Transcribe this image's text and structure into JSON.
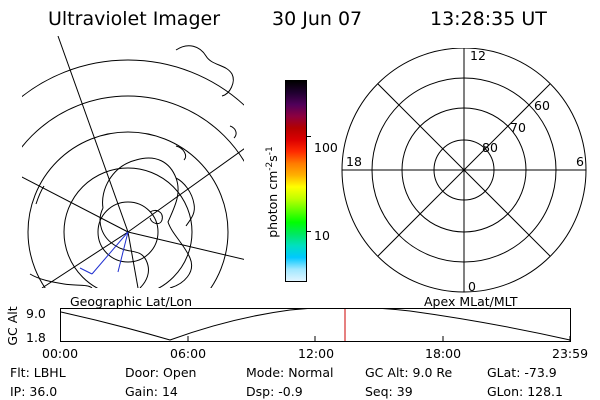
{
  "header": {
    "instrument": "Ultraviolet Imager",
    "date": "30 Jun 07",
    "time": "13:28:35 UT"
  },
  "geo_map": {
    "label": "Geographic Lat/Lon"
  },
  "colorbar": {
    "unit_main": "photon cm",
    "unit_exp1": "-2",
    "unit_s": "s",
    "unit_exp2": "-1",
    "ticks": [
      "100",
      "10"
    ],
    "colors": [
      "#000000",
      "#200030",
      "#50005a",
      "#8c0040",
      "#b40000",
      "#dc0000",
      "#ff2a00",
      "#ff7a00",
      "#ffb000",
      "#ffff00",
      "#c0ff00",
      "#60ff00",
      "#00ff00",
      "#00e860",
      "#00e0c0",
      "#00c8ff",
      "#a0e8ff",
      "#e0f4ff"
    ]
  },
  "polar_plot": {
    "label": "Apex MLat/MLT",
    "mlt_labels": {
      "top": "12",
      "right": "6",
      "bottom": "0",
      "left": "18"
    },
    "lat_labels": [
      "80",
      "70",
      "60"
    ]
  },
  "altitude_plot": {
    "ylabel": "GC Alt",
    "yticks": [
      "9.0",
      "1.8"
    ],
    "xticks": [
      "00:00",
      "06:00",
      "12:00",
      "18:00",
      "23:59"
    ],
    "marker_color": "#cc0000"
  },
  "status": {
    "rows": [
      [
        {
          "label": "Flt:",
          "value": "LBHL"
        },
        {
          "label": "Door:",
          "value": "Open"
        },
        {
          "label": "Mode:",
          "value": "Normal"
        },
        {
          "label": "GC Alt:",
          "value": "9.0 Re"
        },
        {
          "label": "GLat:",
          "value": "-73.9"
        }
      ],
      [
        {
          "label": "IP:",
          "value": "36.0"
        },
        {
          "label": "Gain:",
          "value": "14"
        },
        {
          "label": "Dsp:",
          "value": "-0.9"
        },
        {
          "label": "Seq:",
          "value": "39"
        },
        {
          "label": "GLon:",
          "value": "128.1"
        }
      ]
    ]
  }
}
